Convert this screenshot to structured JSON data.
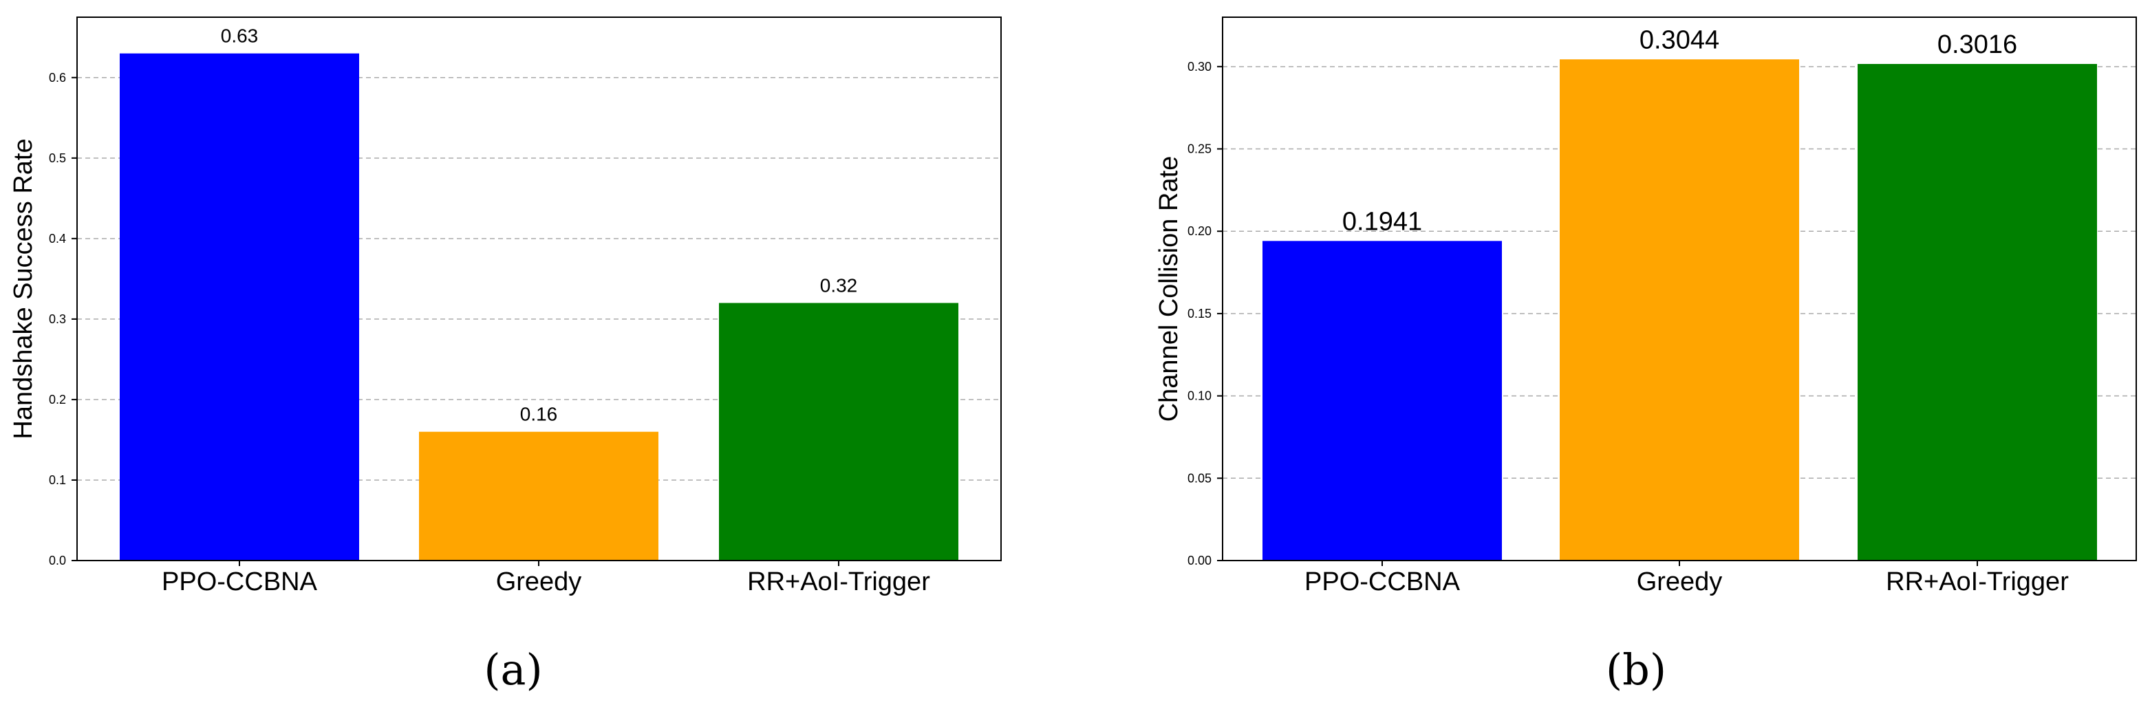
{
  "chart_data": [
    {
      "type": "bar",
      "panel_label": "(a)",
      "categories": [
        "PPO-CCBNA",
        "Greedy",
        "RR+AoI-Trigger"
      ],
      "values": [
        0.63,
        0.16,
        0.32
      ],
      "value_labels": [
        "0.63",
        "0.16",
        "0.32"
      ],
      "colors": [
        "#0000ff",
        "#ffa500",
        "#008000"
      ],
      "xlabel": "",
      "ylabel": "Handshake Success Rate",
      "ylim": [
        0,
        0.675
      ],
      "yticks": [
        "0.0",
        "0.1",
        "0.2",
        "0.3",
        "0.4",
        "0.5",
        "0.6"
      ],
      "grid": "y-dashed"
    },
    {
      "type": "bar",
      "panel_label": "(b)",
      "categories": [
        "PPO-CCBNA",
        "Greedy",
        "RR+AoI-Trigger"
      ],
      "values": [
        0.1941,
        0.3044,
        0.3016
      ],
      "value_labels": [
        "0.1941",
        "0.3044",
        "0.3016"
      ],
      "colors": [
        "#0000ff",
        "#ffa500",
        "#008000"
      ],
      "xlabel": "",
      "ylabel": "Channel Collision Rate",
      "ylim": [
        0,
        0.33
      ],
      "yticks": [
        "0.00",
        "0.05",
        "0.10",
        "0.15",
        "0.20",
        "0.25",
        "0.30"
      ],
      "grid": "y-dashed"
    }
  ]
}
